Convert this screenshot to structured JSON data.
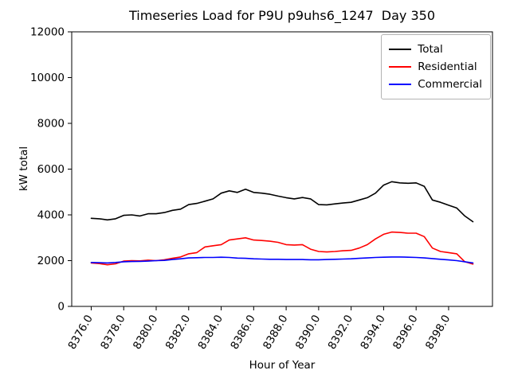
{
  "figure": {
    "title": "Timeseries Load for P9U p9uhs6_1247  Day 350"
  },
  "chart_data": {
    "type": "line",
    "title": "Timeseries Load for P9U p9uhs6_1247  Day 350",
    "xlabel": "Hour of Year",
    "ylabel": "kW total",
    "xlim": [
      8374.8,
      8400.7
    ],
    "ylim": [
      0,
      12000
    ],
    "grid": false,
    "legend_position": "upper right",
    "yticks": [
      0,
      2000,
      4000,
      6000,
      8000,
      10000,
      12000
    ],
    "xticks": [
      8376,
      8378,
      8380,
      8382,
      8384,
      8386,
      8388,
      8390,
      8392,
      8394,
      8396,
      8398
    ],
    "xticklabels": [
      "8376.0",
      "8378.0",
      "8380.0",
      "8382.0",
      "8384.0",
      "8386.0",
      "8388.0",
      "8390.0",
      "8392.0",
      "8394.0",
      "8396.0",
      "8398.0"
    ],
    "x": [
      8376.0,
      8376.5,
      8377.0,
      8377.5,
      8378.0,
      8378.5,
      8379.0,
      8379.5,
      8380.0,
      8380.5,
      8381.0,
      8381.5,
      8382.0,
      8382.5,
      8383.0,
      8383.5,
      8384.0,
      8384.5,
      8385.0,
      8385.5,
      8386.0,
      8386.5,
      8387.0,
      8387.5,
      8388.0,
      8388.5,
      8389.0,
      8389.5,
      8390.0,
      8390.5,
      8391.0,
      8391.5,
      8392.0,
      8392.5,
      8393.0,
      8393.5,
      8394.0,
      8394.5,
      8395.0,
      8395.5,
      8396.0,
      8396.5,
      8397.0,
      8397.5,
      8398.0,
      8398.5,
      8399.0,
      8399.5
    ],
    "series": [
      {
        "name": "Total",
        "color": "#000000",
        "values": [
          3850,
          3830,
          3780,
          3830,
          3980,
          4000,
          3950,
          4050,
          4050,
          4100,
          4200,
          4250,
          4450,
          4500,
          4600,
          4700,
          4950,
          5050,
          4980,
          5120,
          4980,
          4950,
          4900,
          4820,
          4750,
          4700,
          4760,
          4700,
          4450,
          4440,
          4480,
          4520,
          4550,
          4650,
          4750,
          4950,
          5300,
          5450,
          5400,
          5380,
          5400,
          5250,
          4650,
          4550,
          4420,
          4300,
          3950,
          3700
        ]
      },
      {
        "name": "Residential",
        "color": "#ff0000",
        "values": [
          1900,
          1870,
          1820,
          1860,
          1980,
          2000,
          1990,
          2020,
          2000,
          2040,
          2100,
          2160,
          2300,
          2350,
          2600,
          2650,
          2700,
          2900,
          2950,
          3000,
          2900,
          2880,
          2850,
          2800,
          2700,
          2680,
          2700,
          2500,
          2400,
          2380,
          2400,
          2430,
          2450,
          2550,
          2700,
          2950,
          3150,
          3250,
          3230,
          3200,
          3200,
          3050,
          2550,
          2400,
          2350,
          2300,
          1950,
          1850
        ]
      },
      {
        "name": "Commercial",
        "color": "#0000ff",
        "values": [
          1920,
          1910,
          1900,
          1920,
          1950,
          1960,
          1970,
          1980,
          2000,
          2010,
          2050,
          2080,
          2120,
          2130,
          2140,
          2140,
          2150,
          2140,
          2110,
          2100,
          2080,
          2070,
          2060,
          2060,
          2050,
          2050,
          2050,
          2040,
          2040,
          2050,
          2060,
          2070,
          2080,
          2100,
          2120,
          2140,
          2150,
          2160,
          2160,
          2150,
          2140,
          2120,
          2090,
          2060,
          2030,
          2000,
          1950,
          1900
        ]
      }
    ]
  }
}
